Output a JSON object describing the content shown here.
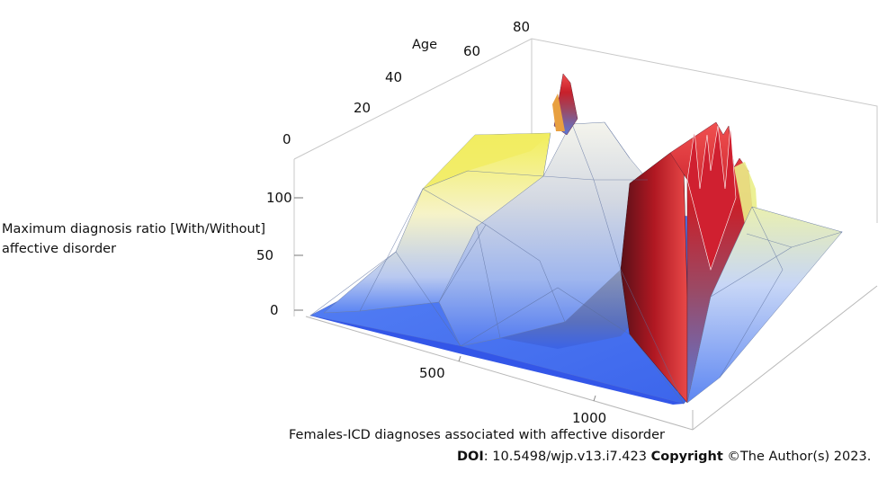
{
  "chart_data": {
    "type": "surface3d",
    "title": "",
    "xlabel": "Females-ICD diagnoses associated with affective disorder",
    "ylabel": "Age",
    "zlabel_line1": "Maximum diagnosis ratio [With/Without]",
    "zlabel_line2": "affective disorder",
    "x_ticks": [
      "500",
      "1000"
    ],
    "y_ticks": [
      "0",
      "20",
      "40",
      "60",
      "80"
    ],
    "z_ticks": [
      "0",
      "50",
      "100"
    ],
    "xlim": [
      0,
      1200
    ],
    "ylim": [
      0,
      80
    ],
    "zlim": [
      0,
      140
    ],
    "colormap": [
      "#3a6cf4",
      "#9fbcf7",
      "#f4f4f4",
      "#f2ee5a",
      "#e03030",
      "#7a1020"
    ]
  },
  "credit": {
    "doi_label": "DOI",
    "doi_value": ": 10.5498/wjp.v13.i7.423 ",
    "copyright_label": "Copyright",
    "copyright_value": " ©The Author(s) 2023."
  }
}
